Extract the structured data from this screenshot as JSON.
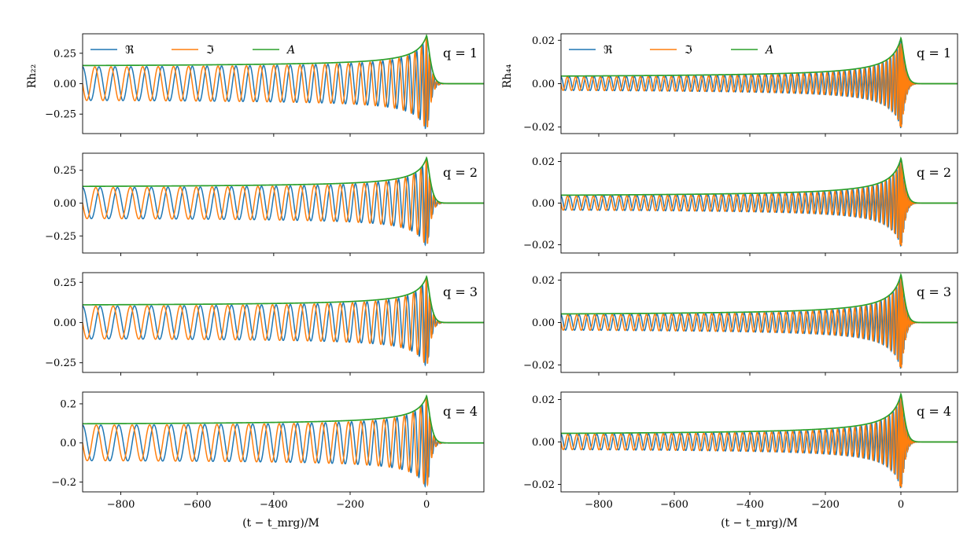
{
  "chart_data": {
    "type": "line",
    "layout": "4 rows x 2 columns of line plots sharing the x axis within each column",
    "x_range": [
      -900,
      150
    ],
    "x_ticks": [
      -800,
      -600,
      -400,
      -200,
      0
    ],
    "x_tick_labels": [
      "−800",
      "−600",
      "−400",
      "−200",
      "0"
    ],
    "xlabel": "(t − t_mrg)/M",
    "legend": {
      "placement": "top-left of the top panels, single row",
      "entries": [
        {
          "name": "ℜ",
          "color": "#1f77b4"
        },
        {
          "name": "ℑ",
          "color": "#ff7f0e"
        },
        {
          "name": "A",
          "color": "#2ca02c"
        }
      ]
    },
    "series_colors": {
      "real": "#1f77b4",
      "imag": "#ff7f0e",
      "amplitude": "#2ca02c"
    },
    "columns": [
      {
        "mode": "22",
        "ylabel": "Rh₂₂",
        "panels": [
          {
            "q_label": "q = 1",
            "ylim": [
              -0.41,
              0.41
            ],
            "y_ticks": [
              -0.25,
              0,
              0.25
            ],
            "y_tick_labels": [
              "−0.25",
              "0.00",
              "0.25"
            ],
            "amplitude_at_x_min": 0.135,
            "peak_amplitude": 0.395,
            "cycles_shown": 28
          },
          {
            "q_label": "q = 2",
            "ylim": [
              -0.38,
              0.38
            ],
            "y_ticks": [
              -0.25,
              0,
              0.25
            ],
            "y_tick_labels": [
              "−0.25",
              "0.00",
              "0.25"
            ],
            "amplitude_at_x_min": 0.115,
            "peak_amplitude": 0.345,
            "cycles_shown": 26
          },
          {
            "q_label": "q = 3",
            "ylim": [
              -0.31,
              0.31
            ],
            "y_ticks": [
              -0.25,
              0,
              0.25
            ],
            "y_tick_labels": [
              "−0.25",
              "0.00",
              "0.25"
            ],
            "amplitude_at_x_min": 0.1,
            "peak_amplitude": 0.285,
            "cycles_shown": 26
          },
          {
            "q_label": "q = 4",
            "ylim": [
              -0.25,
              0.26
            ],
            "y_ticks": [
              -0.2,
              0,
              0.2
            ],
            "y_tick_labels": [
              "−0.2",
              "0.0",
              "0.2"
            ],
            "amplitude_at_x_min": 0.09,
            "peak_amplitude": 0.24,
            "cycles_shown": 25
          }
        ]
      },
      {
        "mode": "44",
        "ylabel": "Rh₄₄",
        "panels": [
          {
            "q_label": "q = 1",
            "ylim": [
              -0.023,
              0.023
            ],
            "y_ticks": [
              -0.02,
              0,
              0.02
            ],
            "y_tick_labels": [
              "−0.02",
              "0.00",
              "0.02"
            ],
            "amplitude_at_x_min": 0.0025,
            "peak_amplitude": 0.021,
            "cycles_shown": 54
          },
          {
            "q_label": "q = 2",
            "ylim": [
              -0.024,
              0.024
            ],
            "y_ticks": [
              -0.02,
              0,
              0.02
            ],
            "y_tick_labels": [
              "−0.02",
              "0.00",
              "0.02"
            ],
            "amplitude_at_x_min": 0.0028,
            "peak_amplitude": 0.0215,
            "cycles_shown": 52
          },
          {
            "q_label": "q = 3",
            "ylim": [
              -0.0235,
              0.0235
            ],
            "y_ticks": [
              -0.02,
              0,
              0.02
            ],
            "y_tick_labels": [
              "−0.02",
              "0.00",
              "0.02"
            ],
            "amplitude_at_x_min": 0.003,
            "peak_amplitude": 0.0225,
            "cycles_shown": 50
          },
          {
            "q_label": "q = 4",
            "ylim": [
              -0.0235,
              0.0235
            ],
            "y_ticks": [
              -0.02,
              0,
              0.02
            ],
            "y_tick_labels": [
              "−0.02",
              "0.00",
              "0.02"
            ],
            "amplitude_at_x_min": 0.003,
            "peak_amplitude": 0.0225,
            "cycles_shown": 50
          }
        ]
      }
    ]
  }
}
